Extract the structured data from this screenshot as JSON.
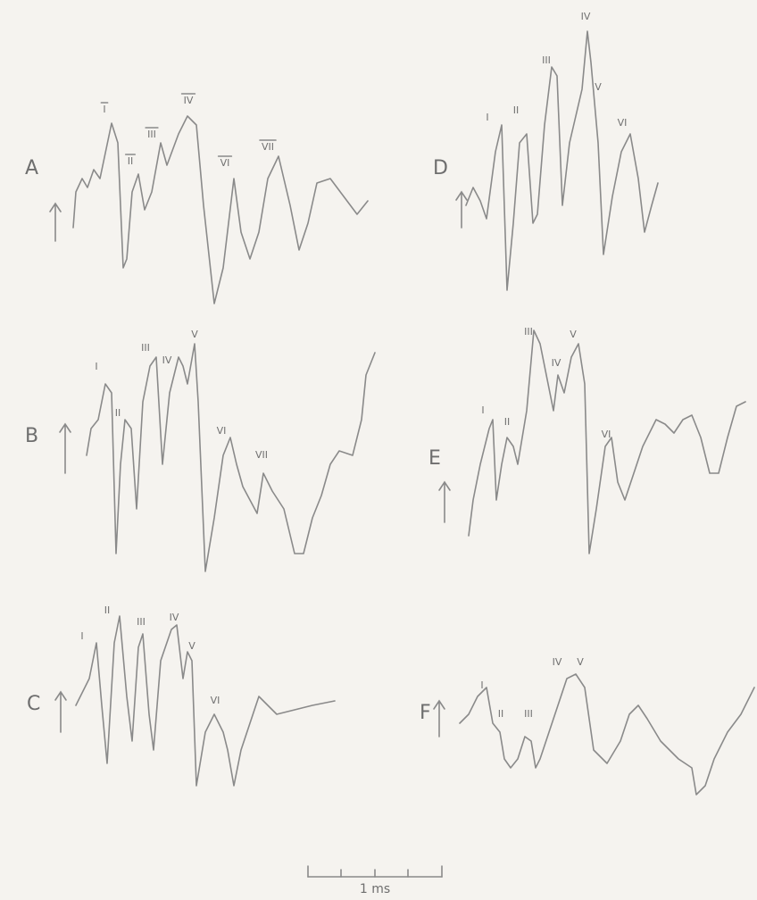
{
  "panels": [
    {
      "label": "A",
      "peaks": [
        "I",
        "II",
        "III",
        "IV",
        "VI",
        "VII"
      ]
    },
    {
      "label": "B",
      "peaks": [
        "I",
        "II",
        "III",
        "IV",
        "V",
        "VI",
        "VII"
      ]
    },
    {
      "label": "C",
      "peaks": [
        "I",
        "II",
        "III",
        "IV",
        "V",
        "VI"
      ]
    },
    {
      "label": "D",
      "peaks": [
        "I",
        "II",
        "III",
        "IV",
        "V",
        "VI"
      ]
    },
    {
      "label": "E",
      "peaks": [
        "I",
        "II",
        "III",
        "IV",
        "V",
        "VI"
      ]
    },
    {
      "label": "F",
      "peaks": [
        "I",
        "II",
        "III",
        "IV",
        "V"
      ]
    }
  ],
  "scale_bar": {
    "label": "1 ms"
  }
}
